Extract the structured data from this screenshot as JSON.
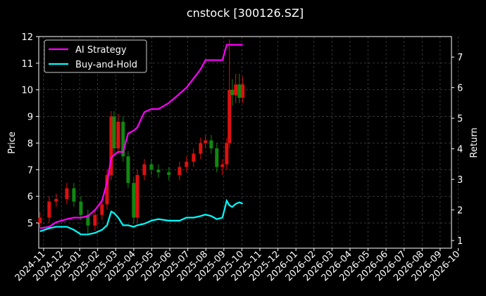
{
  "chart_data": {
    "type": "candlestick",
    "title": "cnstock [300126.SZ]",
    "ylabel": "Price",
    "y2label": "Return",
    "x": [
      -0.2,
      0.31,
      0.7,
      1.29,
      1.68,
      2.07,
      2.46,
      2.85,
      3.24,
      3.52,
      3.75,
      3.91,
      4.14,
      4.41,
      4.69,
      5.0,
      5.2,
      5.59,
      5.98,
      6.37,
      6.95,
      7.54,
      7.93,
      8.32,
      8.71,
      8.98,
      9.3,
      9.61,
      9.92,
      10.16,
      10.31,
      10.47,
      10.66,
      10.86,
      11.05
    ],
    "open": [
      5.0,
      5.2,
      5.8,
      5.9,
      6.3,
      5.8,
      5.3,
      4.9,
      5.3,
      5.7,
      6.8,
      9.0,
      7.8,
      8.8,
      7.5,
      6.5,
      5.2,
      6.8,
      7.2,
      7.0,
      6.9,
      6.8,
      7.1,
      7.3,
      7.6,
      8.0,
      8.1,
      7.8,
      7.1,
      7.2,
      8.0,
      10.0,
      9.8,
      10.2,
      9.7
    ],
    "high": [
      5.4,
      6.0,
      6.1,
      6.5,
      6.5,
      6.0,
      5.5,
      5.5,
      5.9,
      7.0,
      9.2,
      9.2,
      9.1,
      9.0,
      7.7,
      6.7,
      7.0,
      7.4,
      7.4,
      7.2,
      7.1,
      7.3,
      7.5,
      7.8,
      8.2,
      8.3,
      8.3,
      8.0,
      7.4,
      8.2,
      11.9,
      10.4,
      10.6,
      10.6,
      10.5
    ],
    "low": [
      4.8,
      5.0,
      5.6,
      5.7,
      5.6,
      5.1,
      4.6,
      4.7,
      5.1,
      5.5,
      6.6,
      7.6,
      7.6,
      7.3,
      6.3,
      5.0,
      5.0,
      6.6,
      6.8,
      6.7,
      6.6,
      6.6,
      6.9,
      7.1,
      7.4,
      7.8,
      7.6,
      6.9,
      6.8,
      7.0,
      7.8,
      9.4,
      9.5,
      9.5,
      9.5
    ],
    "close": [
      5.2,
      5.8,
      5.9,
      6.3,
      5.8,
      5.3,
      4.9,
      5.3,
      5.7,
      6.8,
      9.0,
      7.8,
      8.8,
      7.5,
      6.5,
      5.2,
      6.8,
      7.2,
      7.0,
      6.9,
      6.8,
      7.1,
      7.3,
      7.6,
      8.0,
      8.1,
      7.8,
      7.1,
      7.2,
      8.0,
      10.0,
      9.8,
      10.2,
      9.7,
      10.2
    ],
    "up_color": "#dd1111",
    "down_color": "#118811",
    "series": [
      {
        "name": "AI Strategy",
        "color": "#ff00ff",
        "axis": "y2",
        "values": [
          1.4,
          1.45,
          1.6,
          1.7,
          1.75,
          1.75,
          1.8,
          2.0,
          2.3,
          2.9,
          3.7,
          3.8,
          3.9,
          3.9,
          4.5,
          4.6,
          4.7,
          5.2,
          5.3,
          5.3,
          5.5,
          5.8,
          6.0,
          6.3,
          6.6,
          6.9,
          6.9,
          6.9,
          6.9,
          7.4,
          7.4,
          7.4,
          7.4,
          7.4,
          7.4
        ]
      },
      {
        "name": "Buy-and-Hold",
        "color": "#00ffff",
        "axis": "y2",
        "values": [
          1.3,
          1.4,
          1.45,
          1.45,
          1.35,
          1.2,
          1.2,
          1.25,
          1.35,
          1.5,
          1.95,
          1.9,
          1.75,
          1.5,
          1.5,
          1.45,
          1.5,
          1.55,
          1.65,
          1.7,
          1.65,
          1.65,
          1.75,
          1.75,
          1.8,
          1.85,
          1.8,
          1.7,
          1.75,
          2.3,
          2.15,
          2.1,
          2.2,
          2.25,
          2.2
        ]
      }
    ],
    "xlim": [
      -0.27,
      22.63
    ],
    "xticks": [
      {
        "value": 0,
        "label": "2024-11"
      },
      {
        "value": 1,
        "label": "2024-12"
      },
      {
        "value": 2,
        "label": "2025-01"
      },
      {
        "value": 3,
        "label": "2025-02"
      },
      {
        "value": 4,
        "label": "2025-03"
      },
      {
        "value": 5,
        "label": "2025-04"
      },
      {
        "value": 6,
        "label": "2025-05"
      },
      {
        "value": 7,
        "label": "2025-06"
      },
      {
        "value": 8,
        "label": "2025-07"
      },
      {
        "value": 9,
        "label": "2025-08"
      },
      {
        "value": 10,
        "label": "2025-09"
      },
      {
        "value": 11,
        "label": "2025-10"
      },
      {
        "value": 12,
        "label": "2025-11"
      },
      {
        "value": 13,
        "label": "2025-12"
      },
      {
        "value": 14,
        "label": "2026-01"
      },
      {
        "value": 15,
        "label": "2026-02"
      },
      {
        "value": 16,
        "label": "2026-03"
      },
      {
        "value": 17,
        "label": "2026-04"
      },
      {
        "value": 18,
        "label": "2026-05"
      },
      {
        "value": 19,
        "label": "2026-06"
      },
      {
        "value": 20,
        "label": "2026-07"
      },
      {
        "value": 21,
        "label": "2026-08"
      },
      {
        "value": 22,
        "label": "2026-09"
      },
      {
        "value": 23,
        "label": "2026-10"
      }
    ],
    "ylim": [
      4.05,
      12
    ],
    "yticks": [
      5,
      6,
      7,
      8,
      9,
      10,
      11,
      12
    ],
    "y2lim": [
      0.75,
      7.67
    ],
    "y2ticks": [
      1,
      2,
      3,
      4,
      5,
      6,
      7
    ],
    "grid": true,
    "legend": "upper left"
  }
}
